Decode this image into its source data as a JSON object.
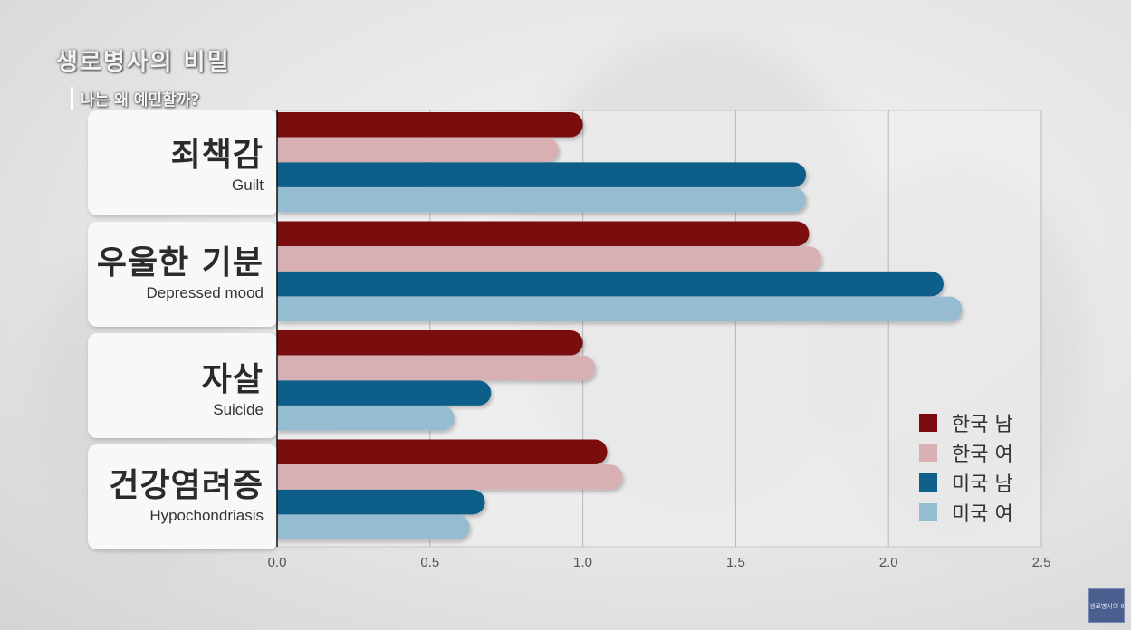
{
  "overlay": {
    "show_title": "생로병사의 비밀",
    "subtitle": "나는 왜 예민할까?",
    "watermark": "생로병사의 비밀"
  },
  "chart_data": {
    "type": "bar",
    "orientation": "horizontal",
    "title": "",
    "xlabel": "",
    "ylabel": "",
    "xlim": [
      0,
      2.5
    ],
    "x_ticks": [
      "0.0",
      "0.5",
      "1.0",
      "1.5",
      "2.0",
      "2.5"
    ],
    "grid": true,
    "legend_position": "bottom-right",
    "categories": [
      {
        "kr": "죄책감",
        "en": "Guilt"
      },
      {
        "kr": "우울한 기분",
        "en": "Depressed mood"
      },
      {
        "kr": "자살",
        "en": "Suicide"
      },
      {
        "kr": "건강염려증",
        "en": "Hypochondriasis"
      }
    ],
    "series": [
      {
        "name": "한국 남",
        "color": "#7a0a0e",
        "values": [
          1.0,
          1.74,
          1.0,
          1.08
        ]
      },
      {
        "name": "한국 여",
        "color": "#d8b0b3",
        "values": [
          0.92,
          1.78,
          1.04,
          1.13
        ]
      },
      {
        "name": "미국 남",
        "color": "#0f5f8a",
        "values": [
          1.73,
          2.18,
          0.7,
          0.68
        ]
      },
      {
        "name": "미국 여",
        "color": "#96bcd1",
        "values": [
          1.73,
          2.24,
          0.58,
          0.63
        ]
      }
    ]
  }
}
